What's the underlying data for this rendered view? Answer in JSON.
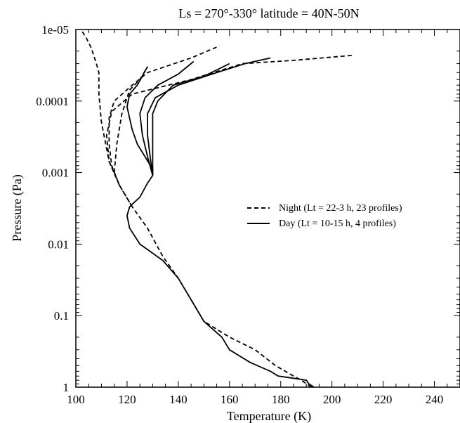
{
  "chart_data": {
    "type": "line",
    "title": "Ls = 270°-330°   latitude = 40N-50N",
    "xlabel": "Temperature (K)",
    "ylabel": "Pressure (Pa)",
    "xlim": [
      100,
      250
    ],
    "ylim": [
      1,
      1e-05
    ],
    "y_scale": "log",
    "y_inverted": true,
    "grid": false,
    "legend_position": "center-right",
    "x_ticks": [
      100,
      120,
      140,
      160,
      180,
      200,
      220,
      240
    ],
    "x_tick_labels": [
      "100",
      "120",
      "140",
      "160",
      "180",
      "200",
      "220",
      "240"
    ],
    "y_ticks": [
      1e-05,
      0.0001,
      0.001,
      0.01,
      0.1,
      1
    ],
    "y_tick_labels": [
      "1e-05",
      "0.0001",
      "0.001",
      "0.01",
      "0.1",
      "1"
    ],
    "legend": [
      {
        "label": "Night (Lt = 22-3 h, 23 profiles)",
        "style": "dashed"
      },
      {
        "label": "Day  (Lt = 10-15 h, 4 profiles)",
        "style": "solid"
      }
    ],
    "series": [
      {
        "group": "night",
        "style": "dashed",
        "points": [
          [
            192,
            1
          ],
          [
            188,
            0.8
          ],
          [
            185,
            0.7
          ],
          [
            178,
            0.5
          ],
          [
            170,
            0.3
          ],
          [
            160,
            0.2
          ],
          [
            150,
            0.12
          ],
          [
            145,
            0.06
          ],
          [
            140,
            0.03
          ],
          [
            134,
            0.015
          ],
          [
            128,
            0.006
          ],
          [
            122,
            0.003
          ],
          [
            117,
            0.0015
          ],
          [
            113,
            0.0007
          ],
          [
            110,
            0.0002
          ],
          [
            109,
            8e-05
          ],
          [
            109,
            4e-05
          ],
          [
            108,
            3e-05
          ],
          [
            106,
            1.8e-05
          ],
          [
            104,
            1.3e-05
          ],
          [
            102,
            1e-05
          ]
        ]
      },
      {
        "group": "night",
        "style": "dashed",
        "points": [
          [
            122,
            0.003
          ],
          [
            117,
            0.0015
          ],
          [
            114,
            0.0008
          ],
          [
            113,
            0.0004
          ],
          [
            113,
            0.00017
          ],
          [
            115,
            0.0001
          ],
          [
            122,
            6e-05
          ],
          [
            128,
            4e-05
          ],
          [
            145,
            2.5e-05
          ],
          [
            156,
            1.7e-05
          ]
        ]
      },
      {
        "group": "night",
        "style": "dashed",
        "points": [
          [
            117,
            0.0015
          ],
          [
            113,
            0.0007
          ],
          [
            112,
            0.0003
          ],
          [
            114,
            0.00014
          ],
          [
            122,
            8e-05
          ],
          [
            145,
            5e-05
          ],
          [
            165,
            3e-05
          ],
          [
            185,
            2.7e-05
          ],
          [
            208,
            2.3e-05
          ]
        ]
      },
      {
        "group": "night",
        "style": "dashed",
        "points": [
          [
            115,
            0.001
          ],
          [
            116,
            0.0004
          ],
          [
            118,
            0.00015
          ],
          [
            121,
            7e-05
          ],
          [
            125,
            5e-05
          ],
          [
            128,
            3.3e-05
          ]
        ]
      },
      {
        "group": "day",
        "style": "solid",
        "points": [
          [
            193,
            1
          ],
          [
            191,
            0.9
          ],
          [
            190,
            0.8
          ],
          [
            185,
            0.75
          ],
          [
            179,
            0.7
          ],
          [
            176,
            0.6
          ],
          [
            168,
            0.45
          ],
          [
            160,
            0.3
          ],
          [
            157,
            0.2
          ],
          [
            150,
            0.12
          ],
          [
            145,
            0.06
          ],
          [
            140,
            0.03
          ],
          [
            134,
            0.017
          ],
          [
            125,
            0.01
          ],
          [
            121,
            0.006
          ],
          [
            120,
            0.004
          ],
          [
            121,
            0.003
          ],
          [
            125,
            0.0022
          ],
          [
            128,
            0.0014
          ],
          [
            130,
            0.0011
          ],
          [
            130,
            0.0009
          ],
          [
            127,
            0.0006
          ],
          [
            124,
            0.0004
          ],
          [
            122,
            0.00025
          ],
          [
            120,
            0.00012
          ],
          [
            121,
            8e-05
          ],
          [
            124,
            6e-05
          ],
          [
            128,
            3.3e-05
          ]
        ]
      },
      {
        "group": "day",
        "style": "solid",
        "points": [
          [
            130,
            0.0011
          ],
          [
            128,
            0.0006
          ],
          [
            126,
            0.0003
          ],
          [
            125,
            0.00015
          ],
          [
            127,
            9e-05
          ],
          [
            132,
            6e-05
          ],
          [
            140,
            4.2e-05
          ],
          [
            146,
            2.8e-05
          ]
        ]
      },
      {
        "group": "day",
        "style": "solid",
        "points": [
          [
            130,
            0.0011
          ],
          [
            129,
            0.0006
          ],
          [
            128,
            0.0003
          ],
          [
            128,
            0.00015
          ],
          [
            131,
            9e-05
          ],
          [
            140,
            6e-05
          ],
          [
            155,
            4e-05
          ],
          [
            166,
            3e-05
          ],
          [
            176,
            2.5e-05
          ]
        ]
      },
      {
        "group": "day",
        "style": "solid",
        "points": [
          [
            130,
            0.0011
          ],
          [
            130,
            0.0006
          ],
          [
            130,
            0.0003
          ],
          [
            130,
            0.00015
          ],
          [
            132,
            0.0001
          ],
          [
            138,
            6e-05
          ],
          [
            150,
            4.5e-05
          ],
          [
            160,
            3e-05
          ]
        ]
      }
    ]
  }
}
